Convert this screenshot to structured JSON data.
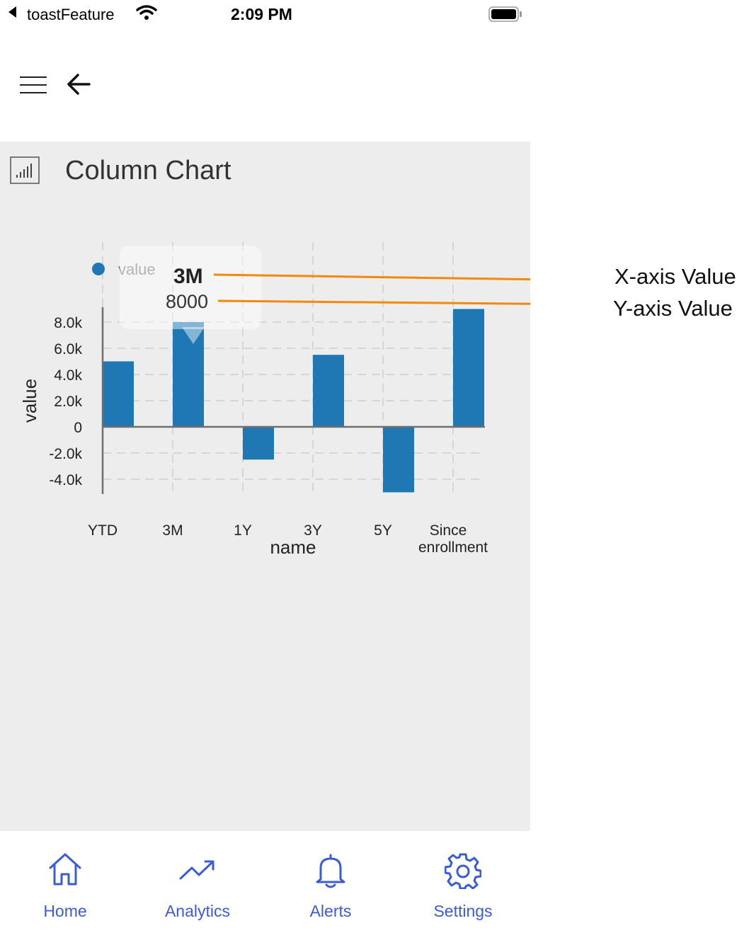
{
  "status_bar": {
    "app_name": "toastFeature",
    "time": "2:09 PM"
  },
  "panel": {
    "title": "Column Chart"
  },
  "tooltip": {
    "x_label": "3M",
    "y_value": "8000"
  },
  "annotations": {
    "x_axis": "X-axis Value",
    "y_axis": "Y-axis Value"
  },
  "colors": {
    "bar": "#1f77b4",
    "accent": "#3b5bd8",
    "arrow": "#f5870a",
    "panel_bg": "#ededed"
  },
  "chart_data": {
    "type": "bar",
    "categories": [
      "YTD",
      "3M",
      "1Y",
      "3Y",
      "5Y",
      "Since enrollment"
    ],
    "series": [
      {
        "name": "value",
        "values": [
          5000,
          8000,
          -2500,
          5500,
          -5000,
          9000
        ]
      }
    ],
    "xlabel": "name",
    "ylabel": "value",
    "ylim": [
      -5000,
      9000
    ],
    "yticks": [
      "8.0k",
      "6.0k",
      "4.0k",
      "2.0k",
      "0",
      "-2.0k",
      "-4.0k"
    ],
    "legend": "top-left",
    "grid": true
  },
  "bottom_nav": [
    {
      "label": "Home",
      "icon": "home-icon"
    },
    {
      "label": "Analytics",
      "icon": "analytics-icon"
    },
    {
      "label": "Alerts",
      "icon": "bell-icon"
    },
    {
      "label": "Settings",
      "icon": "gear-icon"
    }
  ]
}
